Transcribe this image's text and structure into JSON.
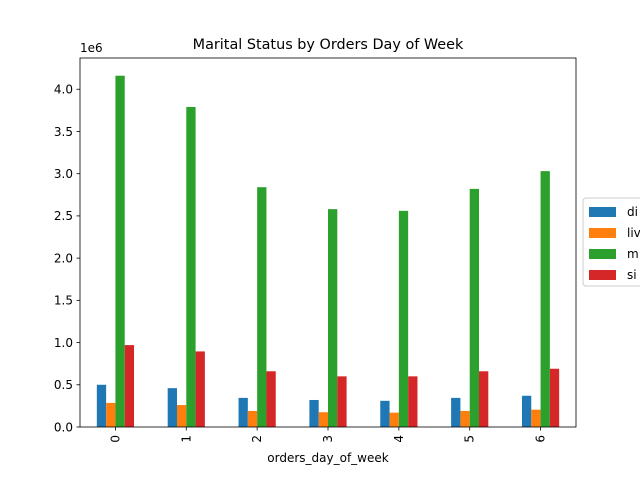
{
  "chart_data": {
    "type": "bar",
    "title": "Marital Status by Orders Day of Week",
    "xlabel": "orders_day_of_week",
    "ylabel": "",
    "y_offset_label": "1e6",
    "y_scale": 1000000,
    "ylim": [
      0,
      4370000
    ],
    "yticks": [
      0,
      500000,
      1000000,
      1500000,
      2000000,
      2500000,
      3000000,
      3500000,
      4000000
    ],
    "ytick_labels": [
      "0.0",
      "0.5",
      "1.0",
      "1.5",
      "2.0",
      "2.5",
      "3.0",
      "3.5",
      "4.0"
    ],
    "categories": [
      "0",
      "1",
      "2",
      "3",
      "4",
      "5",
      "6"
    ],
    "grid": false,
    "legend_position": "right-outside",
    "series": [
      {
        "name": "di",
        "color": "#1f77b4",
        "values": [
          500000,
          460000,
          345000,
          320000,
          310000,
          345000,
          370000
        ]
      },
      {
        "name": "liv",
        "color": "#ff7f0e",
        "values": [
          285000,
          260000,
          190000,
          175000,
          170000,
          190000,
          205000
        ]
      },
      {
        "name": "m",
        "color": "#2ca02c",
        "values": [
          4160000,
          3790000,
          2840000,
          2580000,
          2560000,
          2820000,
          3030000
        ]
      },
      {
        "name": "si",
        "color": "#d62728",
        "values": [
          970000,
          895000,
          660000,
          600000,
          600000,
          660000,
          690000
        ]
      }
    ]
  }
}
